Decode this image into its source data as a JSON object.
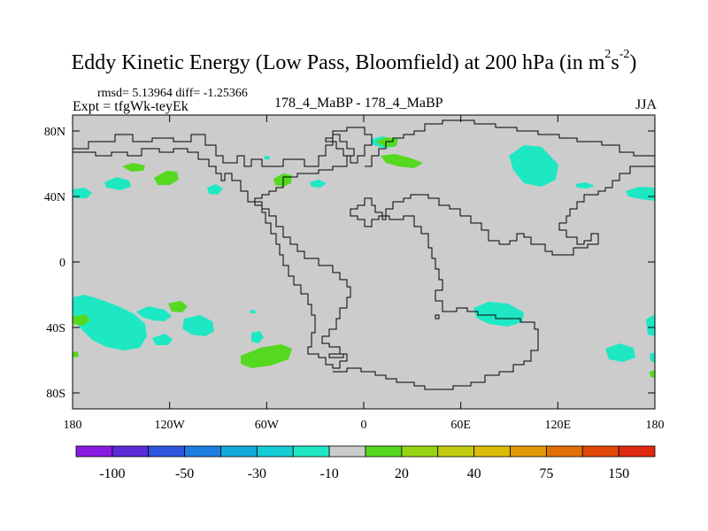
{
  "title_main": "Eddy Kinetic Energy (Low Pass, Bloomfield) at 200 hPa (in m",
  "title_unit_sup1": "2",
  "title_unit_s": "s",
  "title_unit_sup2": "-2",
  "title_close": ")",
  "stats": "rmsd= 5.13964  diff= -1.25366",
  "expt": "Expt = tfgWk-teyEk",
  "comparison": "178_4_MaBP - 178_4_MaBP",
  "season": "JJA",
  "lat_ticks": [
    "80N",
    "40N",
    "0",
    "40S",
    "80S"
  ],
  "lat_values": [
    80,
    40,
    0,
    -40,
    -80
  ],
  "lon_ticks": [
    "180",
    "120W",
    "60W",
    "0",
    "60E",
    "120E",
    "180"
  ],
  "lon_values": [
    -180,
    -120,
    -60,
    0,
    60,
    120,
    180
  ],
  "colorbar": {
    "colors": [
      "#8a1be2",
      "#5a2bd8",
      "#2f56e0",
      "#1b7fe0",
      "#12a9dd",
      "#16cdd6",
      "#1ee8c4",
      "#cccccc",
      "#55d820",
      "#98d414",
      "#c4cc10",
      "#dcbc08",
      "#e09a08",
      "#e27008",
      "#e24808",
      "#e02a10"
    ],
    "labels": [
      "-100",
      "-50",
      "-30",
      "-10",
      "20",
      "40",
      "75",
      "150"
    ],
    "label_edges": [
      1,
      3,
      5,
      7,
      9,
      11,
      13,
      15
    ]
  },
  "colors": {
    "background": "#cccccc",
    "cyan": "#1ee8c4",
    "green": "#55d820",
    "coast": "#000000"
  }
}
